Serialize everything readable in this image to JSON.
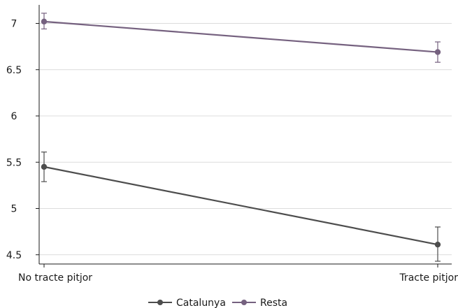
{
  "chart_data": {
    "type": "line",
    "categories": [
      "No tracte pitjor",
      "Tracte pitjor"
    ],
    "series": [
      {
        "name": "Catalunya",
        "color": "#4d4d4d",
        "values": [
          5.45,
          4.61
        ],
        "ci_low": [
          5.29,
          4.43
        ],
        "ci_high": [
          5.61,
          4.8
        ]
      },
      {
        "name": "Resta",
        "color": "#75617f",
        "values": [
          7.02,
          6.69
        ],
        "ci_low": [
          6.94,
          6.58
        ],
        "ci_high": [
          7.11,
          6.8
        ]
      }
    ],
    "y_ticks": [
      "4.5",
      "5",
      "5.5",
      "6",
      "6.5",
      "7"
    ],
    "ylim": [
      4.4,
      7.2
    ],
    "grid": "horizontal",
    "legend_position": "bottom",
    "title": "",
    "xlabel": "",
    "ylabel": ""
  }
}
